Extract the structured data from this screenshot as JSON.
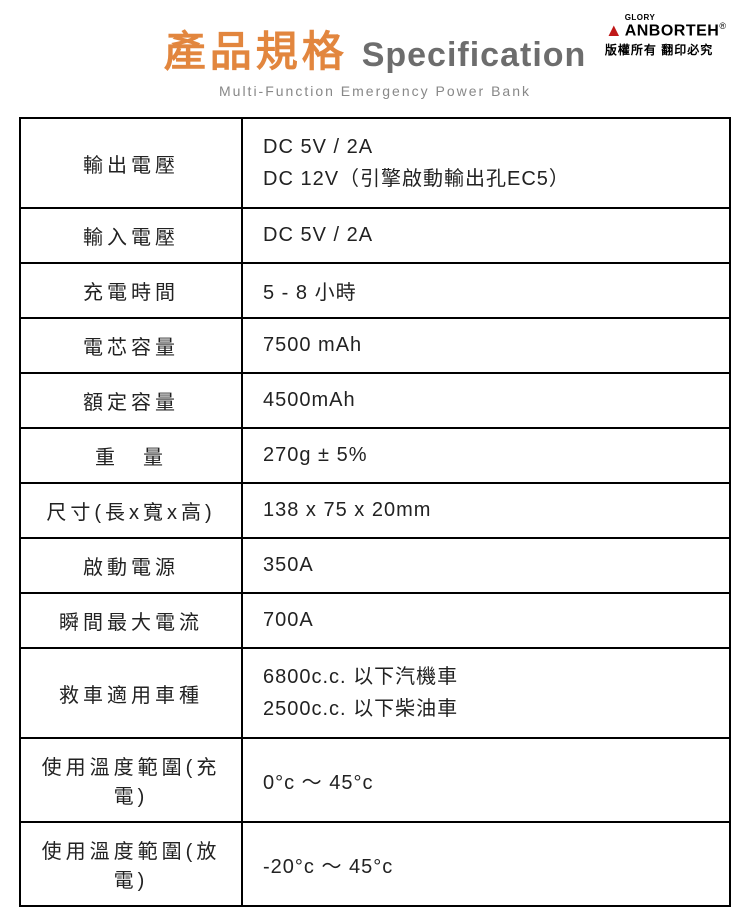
{
  "header": {
    "title_cn": "產品規格",
    "title_en": "Specification",
    "subtitle": "Multi-Function Emergency Power Bank",
    "title_cn_color": "#e2863e",
    "title_en_color": "#6d6d6d"
  },
  "brand": {
    "small": "GLORY",
    "big": "ANBORTEH",
    "reg": "®",
    "sub": "版權所有 翻印必究",
    "color": "#1a1a1a",
    "accent": "#c01818"
  },
  "spec_table": {
    "border_color": "#000000",
    "text_color": "#222222",
    "rows": [
      {
        "label": "輸出電壓",
        "value": "DC 5V / 2A\nDC 12V（引擎啟動輸出孔EC5）",
        "multiline": true
      },
      {
        "label": "輸入電壓",
        "value": "DC 5V / 2A"
      },
      {
        "label": "充電時間",
        "value": "5 - 8 小時"
      },
      {
        "label": "電芯容量",
        "value": "7500 mAh"
      },
      {
        "label": "額定容量",
        "value": "4500mAh"
      },
      {
        "label": "重　量",
        "value": "270g ± 5%"
      },
      {
        "label": "尺寸(長x寬x高)",
        "value": "138 x 75 x 20mm",
        "tight": true
      },
      {
        "label": "啟動電源",
        "value": "350A"
      },
      {
        "label": "瞬間最大電流",
        "value": "700A",
        "tight": true
      },
      {
        "label": "救車適用車種",
        "value": "6800c.c. 以下汽機車\n2500c.c. 以下柴油車",
        "multiline": true,
        "tight": true
      },
      {
        "label": "使用溫度範圍(充電)",
        "value": "0°c  ～  45°c",
        "tight": true
      },
      {
        "label": "使用溫度範圍(放電)",
        "value": "-20°c  ～  45°c",
        "tight": true
      }
    ]
  }
}
